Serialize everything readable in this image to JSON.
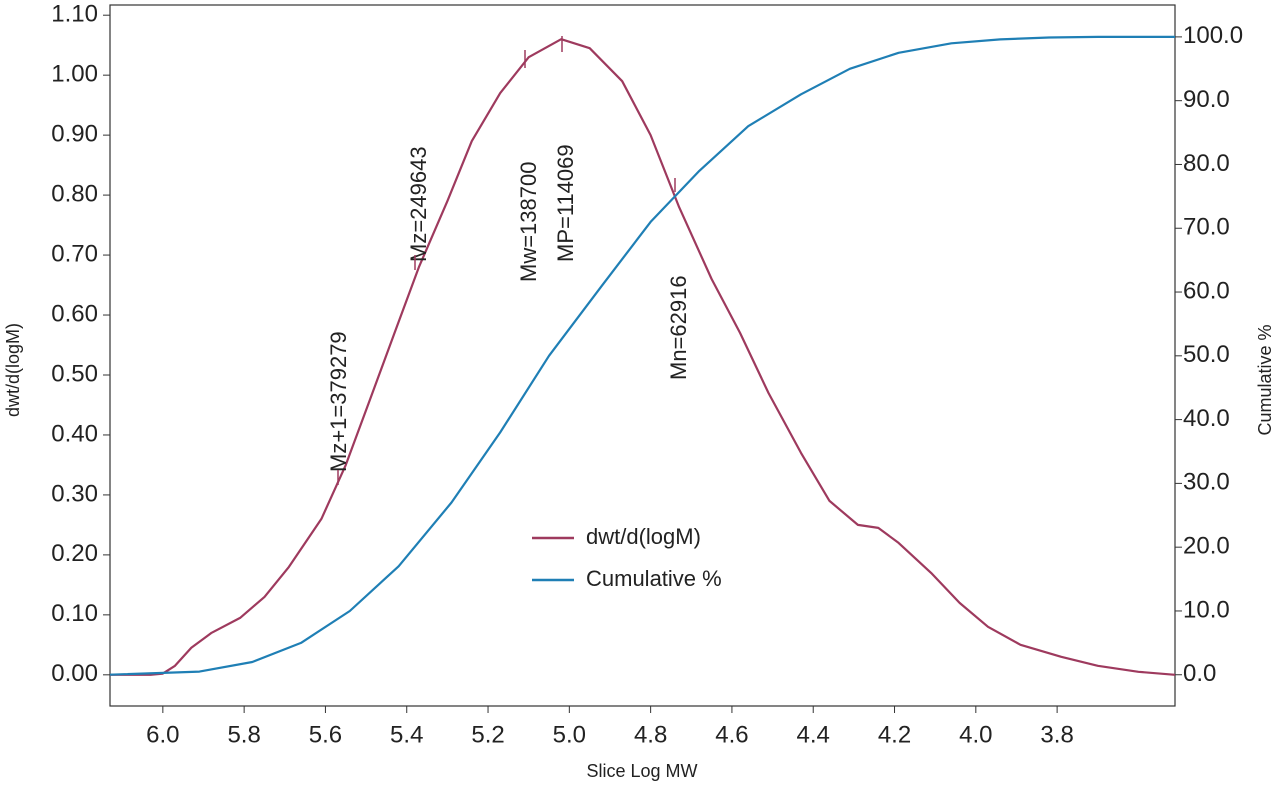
{
  "chart_data": {
    "type": "line",
    "xlabel": "Slice Log MW",
    "ylabel": "dwt/d(logM)",
    "y2label": "Cumulative %",
    "xlim": [
      6.13,
      3.51
    ],
    "ylim": [
      -0.052,
      1.117
    ],
    "y2lim": [
      -4.9,
      105.0
    ],
    "xticks": [
      {
        "value": 6.0,
        "label": "6.0"
      },
      5.8,
      5.6,
      5.4,
      5.2,
      {
        "value": 5.0,
        "label": "5.0"
      },
      4.8,
      4.6,
      4.4,
      4.2,
      {
        "value": 4.0,
        "label": "4.0"
      },
      3.8
    ],
    "yticks": [
      {
        "value": 0,
        "label": "0.00"
      },
      {
        "value": 0.1,
        "label": "0.10"
      },
      {
        "value": 0.2,
        "label": "0.20"
      },
      {
        "value": 0.3,
        "label": "0.30"
      },
      {
        "value": 0.4,
        "label": "0.40"
      },
      {
        "value": 0.5,
        "label": "0.50"
      },
      {
        "value": 0.6,
        "label": "0.60"
      },
      {
        "value": 0.7,
        "label": "0.70"
      },
      {
        "value": 0.8,
        "label": "0.80"
      },
      {
        "value": 0.9,
        "label": "0.90"
      },
      {
        "value": 1.0,
        "label": "1.00"
      },
      {
        "value": 1.1,
        "label": "1.10"
      }
    ],
    "y2ticks": [
      {
        "value": 0,
        "label": "0.0"
      },
      {
        "value": 10,
        "label": "10.0"
      },
      {
        "value": 20,
        "label": "20.0"
      },
      {
        "value": 30,
        "label": "30.0"
      },
      {
        "value": 40,
        "label": "40.0"
      },
      {
        "value": 50,
        "label": "50.0"
      },
      {
        "value": 60,
        "label": "60.0"
      },
      {
        "value": 70,
        "label": "70.0"
      },
      {
        "value": 80,
        "label": "80.0"
      },
      {
        "value": 90,
        "label": "90.0"
      },
      {
        "value": 100,
        "label": "100.0"
      }
    ],
    "grid": false,
    "series": [
      {
        "name": "dwt/d(logM)",
        "color": "#9e3a5e",
        "x": [
          6.13,
          6.03,
          6.0,
          5.97,
          5.93,
          5.88,
          5.81,
          5.75,
          5.69,
          5.61,
          5.55,
          5.49,
          5.43,
          5.37,
          5.3,
          5.24,
          5.17,
          5.1,
          5.02,
          4.95,
          4.87,
          4.8,
          4.73,
          4.65,
          4.58,
          4.51,
          4.43,
          4.36,
          4.29,
          4.24,
          4.19,
          4.11,
          4.04,
          3.97,
          3.89,
          3.79,
          3.7,
          3.6,
          3.51
        ],
        "values": [
          0,
          0,
          0.002,
          0.015,
          0.045,
          0.07,
          0.095,
          0.13,
          0.18,
          0.26,
          0.35,
          0.46,
          0.57,
          0.68,
          0.79,
          0.89,
          0.97,
          1.03,
          1.06,
          1.045,
          0.99,
          0.9,
          0.78,
          0.66,
          0.57,
          0.47,
          0.37,
          0.29,
          0.25,
          0.245,
          0.22,
          0.17,
          0.12,
          0.08,
          0.05,
          0.03,
          0.015,
          0.005,
          0
        ]
      },
      {
        "name": "Cumulative %",
        "color": "#1f7fb5",
        "axis": "y2",
        "x": [
          6.13,
          5.91,
          5.78,
          5.66,
          5.54,
          5.42,
          5.29,
          5.17,
          5.05,
          4.92,
          4.8,
          4.68,
          4.56,
          4.43,
          4.31,
          4.19,
          4.06,
          3.94,
          3.82,
          3.7,
          3.51
        ],
        "values": [
          0,
          0.5,
          2,
          5,
          10,
          17,
          27,
          38,
          50,
          61,
          71,
          79,
          86,
          91,
          95,
          97.5,
          99,
          99.6,
          99.9,
          100,
          100
        ]
      }
    ],
    "annotations": [
      "Mz+1=379279",
      "Mz=249643",
      "Mw=138700",
      "MP=114069",
      "Mn=62916"
    ]
  }
}
